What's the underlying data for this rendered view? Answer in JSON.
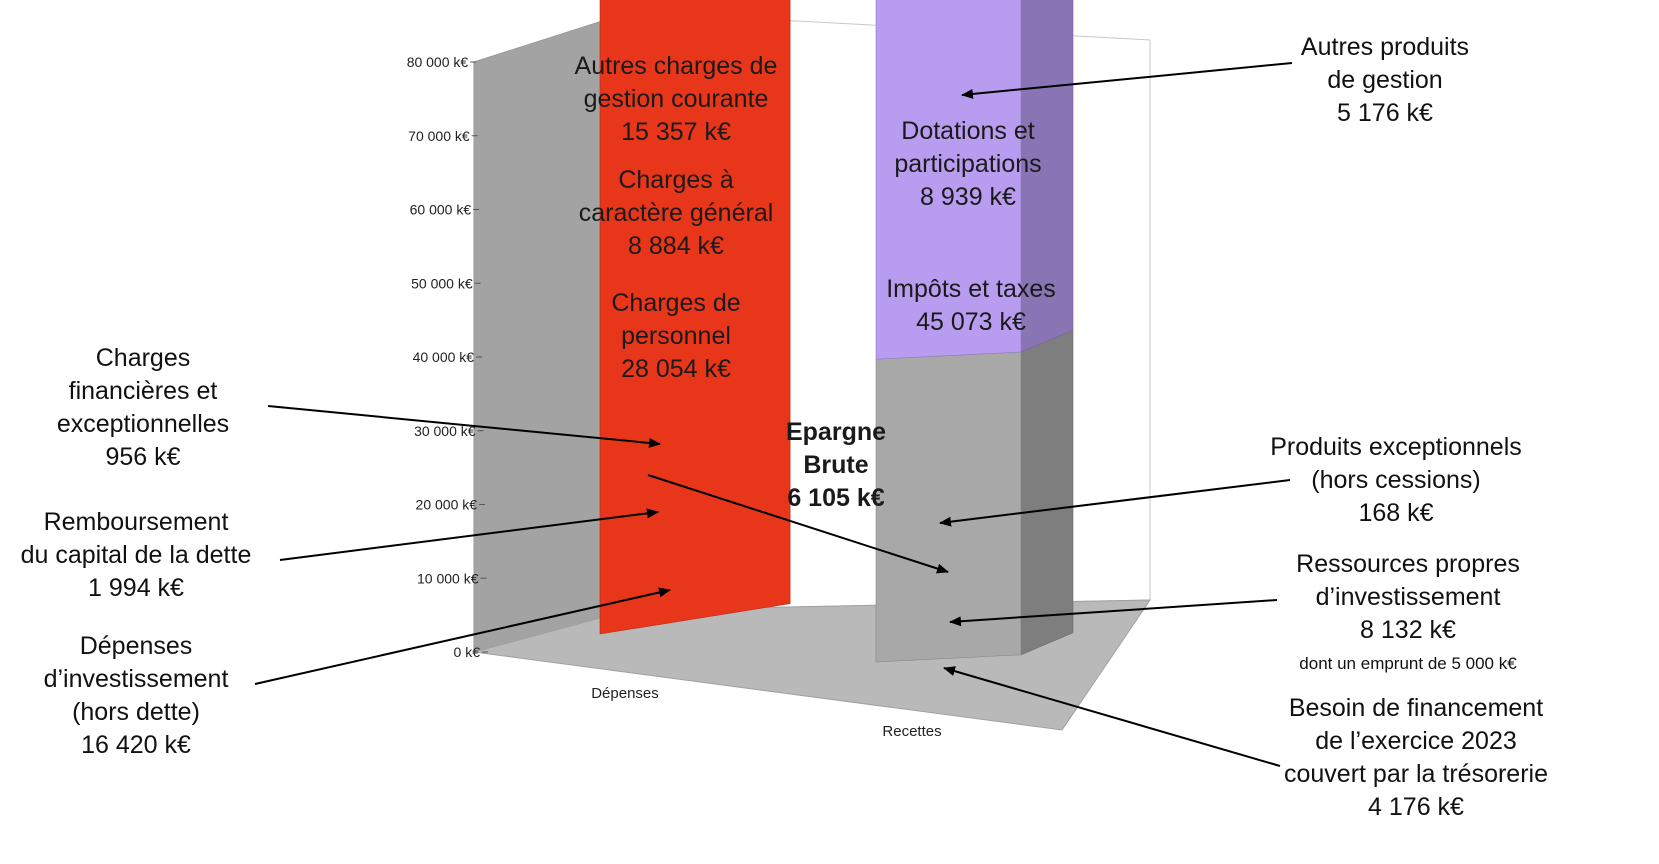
{
  "chart_data": {
    "type": "bar",
    "stacked": true,
    "three_d": true,
    "categories": [
      "Dépenses",
      "Recettes"
    ],
    "ylim": [
      0,
      80000
    ],
    "yticks": [
      "0 k€",
      "10 000 k€",
      "20 000 k€",
      "30 000 k€",
      "40 000 k€",
      "50 000 k€",
      "60 000 k€",
      "70 000 k€",
      "80 000 k€"
    ],
    "grid": false,
    "series": [
      {
        "category": "Dépenses",
        "value": 16420,
        "color": "#e8361a",
        "lines": [],
        "callout": [
          "Dépenses",
          "d’investissement",
          "(hors dette)",
          "16 420 k€"
        ]
      },
      {
        "category": "Dépenses",
        "value": 1994,
        "color": "#1bb3d6",
        "lines": [],
        "callout": [
          "Remboursement",
          "du capital de la dette",
          "1 994 k€"
        ]
      },
      {
        "category": "Dépenses",
        "value": 6105,
        "color": "#f2b705",
        "lines": [
          "Epargne",
          "Brute",
          "6 105 k€"
        ],
        "callout": []
      },
      {
        "category": "Dépenses",
        "value": 956,
        "color": "#6a2d9e",
        "lines": [],
        "callout": [
          "Charges",
          "financières et",
          "exceptionnelles",
          "956 k€"
        ]
      },
      {
        "category": "Dépenses",
        "value": 28054,
        "color": "#8fb3ef",
        "lines": [
          "Charges de",
          "personnel",
          "28 054 k€"
        ],
        "callout": []
      },
      {
        "category": "Dépenses",
        "value": 8884,
        "color": "#d6a8f2",
        "lines": [
          "Charges à",
          "caractère général",
          "8 884 k€"
        ],
        "callout": []
      },
      {
        "category": "Dépenses",
        "value": 15357,
        "color": "#b5668c",
        "lines": [
          "Autres charges de",
          "gestion courante",
          "15 357 k€"
        ],
        "callout": []
      },
      {
        "category": "Recettes",
        "value": 4176,
        "color": "#a8a8a8",
        "lines": [],
        "callout": [
          "Besoin de financement",
          "de l’exercice 2023",
          "couvert par la trésorerie",
          "4 176 k€"
        ]
      },
      {
        "category": "Recettes",
        "value": 8132,
        "color": "#b79cf0",
        "lines": [],
        "callout": [
          "Ressources propres",
          "d’investissement",
          "8 132 k€"
        ],
        "note": "dont un emprunt de 5 000 k€"
      },
      {
        "category": "Recettes",
        "value": 6105,
        "color": "#f2b705",
        "lines": [],
        "callout": []
      },
      {
        "category": "Recettes",
        "value": 168,
        "color": "#e0706a",
        "lines": [],
        "callout": [
          "Produits exceptionnels",
          "(hors cessions)",
          "168 k€"
        ]
      },
      {
        "category": "Recettes",
        "value": 45073,
        "color": "#9cc99a",
        "lines": [
          "Impôts et taxes",
          "45 073 k€"
        ],
        "callout": []
      },
      {
        "category": "Recettes",
        "value": 8939,
        "color": "#9bc932",
        "lines": [
          "Dotations et",
          "participations",
          "8 939 k€"
        ],
        "callout": []
      },
      {
        "category": "Recettes",
        "value": 5176,
        "color": "#5f7f1e",
        "lines": [],
        "callout": [
          "Autres produits",
          "de gestion",
          "5 176 k€"
        ]
      }
    ]
  }
}
